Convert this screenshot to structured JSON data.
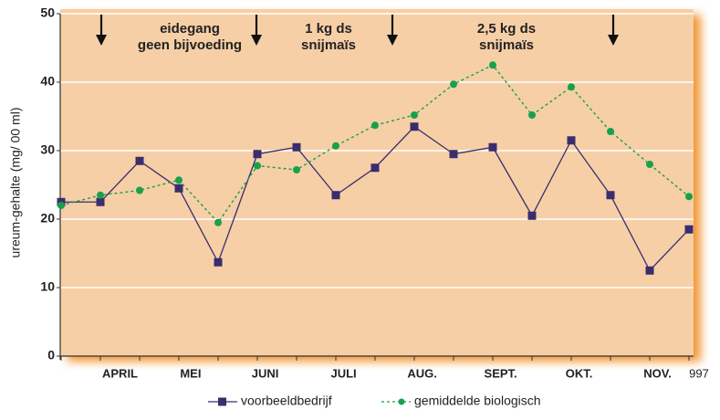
{
  "chart_data": {
    "type": "line",
    "y_label": "ureum-gehalte (mg/ 00 ml)",
    "x": [
      0,
      1,
      2,
      3,
      4,
      5,
      6,
      7,
      8,
      9,
      10,
      11,
      12,
      13,
      14,
      15,
      16
    ],
    "xlim": [
      0,
      16
    ],
    "xticks": [
      {
        "value": 1.5,
        "label": "APRIL"
      },
      {
        "value": 3.3,
        "label": "MEI"
      },
      {
        "value": 5.2,
        "label": "JUNI"
      },
      {
        "value": 7.2,
        "label": "JULI"
      },
      {
        "value": 9.2,
        "label": "AUG."
      },
      {
        "value": 11.2,
        "label": "SEPT."
      },
      {
        "value": 13.2,
        "label": "OKT."
      },
      {
        "value": 15.2,
        "label": "NOV."
      }
    ],
    "x_note": "997",
    "ylim": [
      0,
      50
    ],
    "yticks": [
      0,
      10,
      20,
      30,
      40,
      50
    ],
    "grid": true,
    "annotations": [
      [
        "eidegang",
        "geen bijvoeding"
      ],
      [
        "1 kg ds",
        "snijmaïs"
      ],
      [
        "2,5 kg ds",
        "snijmaïs"
      ]
    ],
    "series": [
      {
        "name": "voorbeeldbedrijf",
        "color": "#3a2d6e",
        "marker": "square",
        "dash": false,
        "values": [
          22.5,
          22.5,
          28.5,
          24.5,
          13.7,
          29.5,
          30.5,
          23.5,
          27.5,
          33.5,
          29.5,
          30.5,
          20.5,
          31.5,
          23.5,
          12.5,
          18.5
        ]
      },
      {
        "name": "gemiddelde biologisch",
        "color": "#17a14a",
        "marker": "circle",
        "dash": true,
        "values": [
          22,
          23.5,
          24.2,
          25.7,
          19.5,
          27.8,
          27.2,
          30.7,
          33.7,
          35.2,
          39.7,
          42.5,
          35.2,
          39.3,
          32.8,
          28,
          23.3
        ]
      }
    ]
  }
}
